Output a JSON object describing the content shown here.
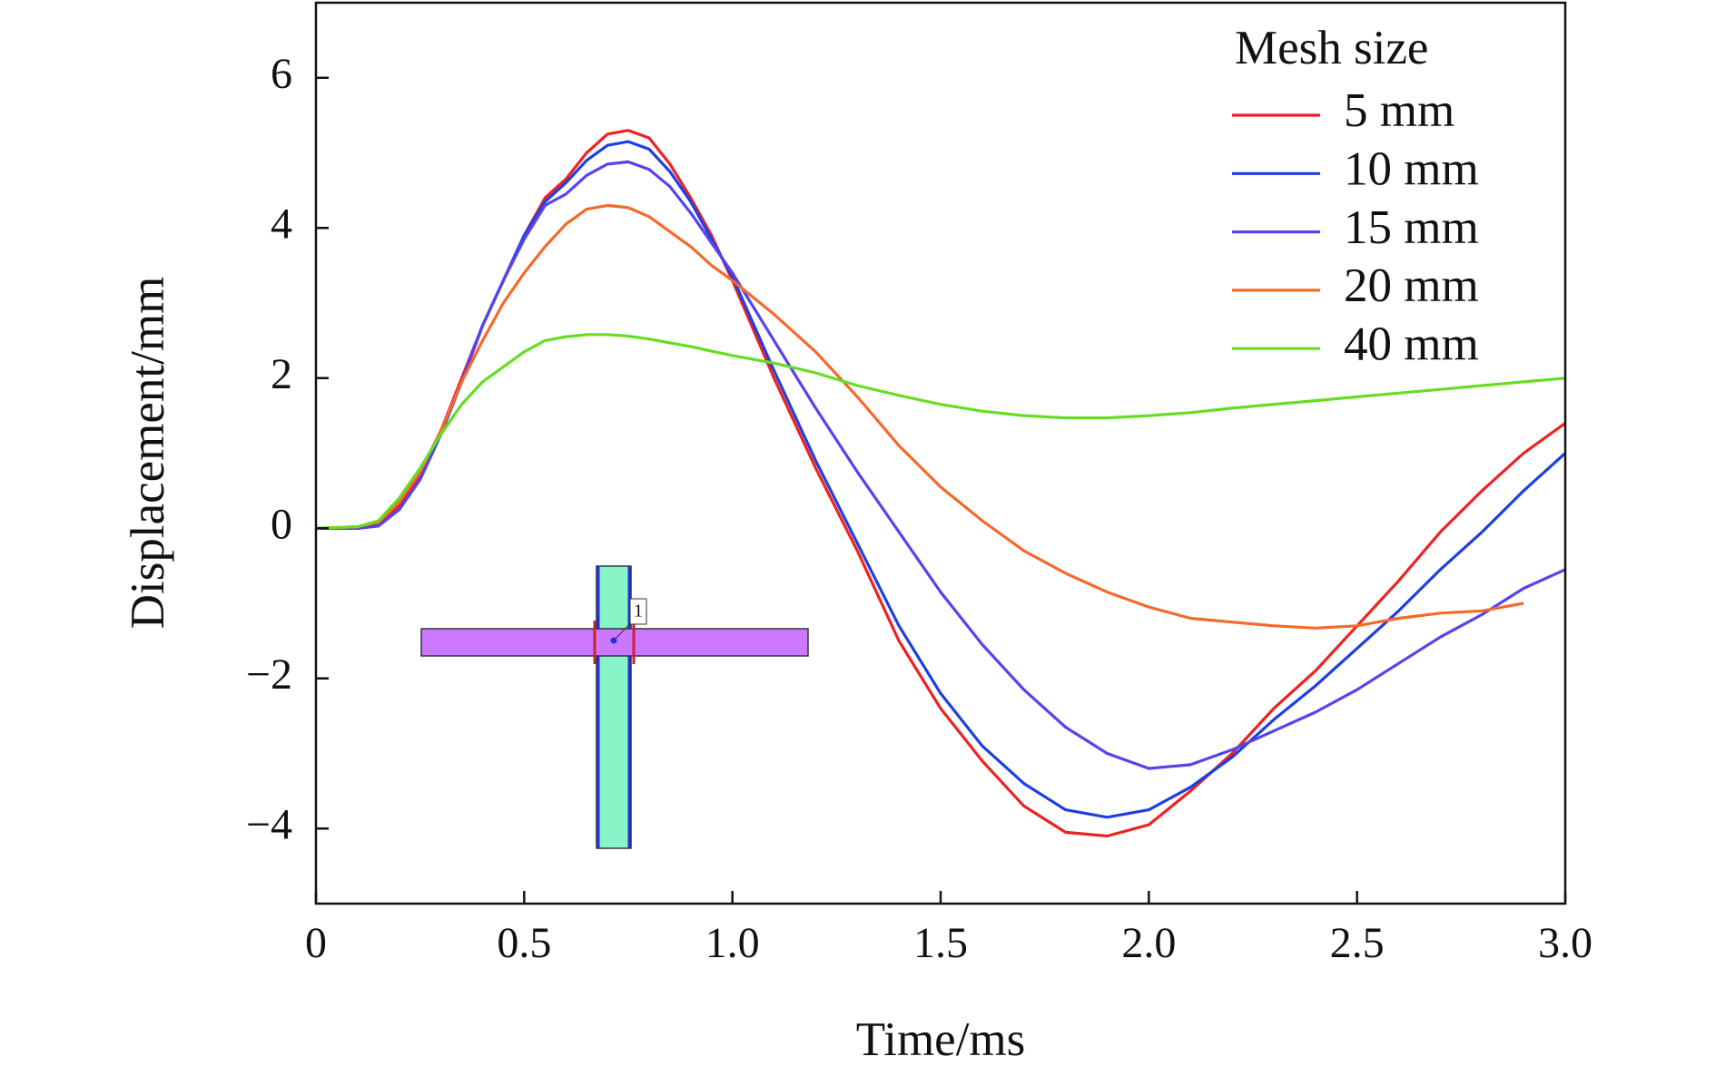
{
  "chart_data": {
    "type": "line",
    "x_label": "Time/ms",
    "y_label": "Displacement/mm",
    "legend_title": "Mesh size",
    "legend": "upper right",
    "annotations": [
      "1"
    ],
    "xlim": [
      0,
      3
    ],
    "ylim": [
      -5,
      7
    ],
    "xticks": [
      0,
      0.5,
      {
        "value": 1,
        "label": "1.0"
      },
      1.5,
      {
        "value": 2,
        "label": "2.0"
      },
      2.5,
      {
        "value": 3,
        "label": "3.0"
      }
    ],
    "yticks": [
      {
        "value": -4,
        "label": "−4"
      },
      {
        "value": -2,
        "label": "−2"
      },
      0,
      2,
      4,
      6
    ],
    "x": [
      0,
      0.1,
      0.15,
      0.2,
      0.25,
      0.3,
      0.35,
      0.4,
      0.45,
      0.5,
      0.55,
      0.6,
      0.65,
      0.7,
      0.75,
      0.8,
      0.85,
      0.9,
      0.95,
      1.0,
      1.1,
      1.2,
      1.3,
      1.4,
      1.5,
      1.6,
      1.7,
      1.8,
      1.9,
      2.0,
      2.1,
      2.2,
      2.3,
      2.4,
      2.5,
      2.6,
      2.7,
      2.8,
      2.9,
      3.0
    ],
    "series": [
      {
        "name": "5 mm",
        "color": "#ee2222",
        "values": [
          0,
          0,
          0.05,
          0.3,
          0.7,
          1.3,
          2.0,
          2.7,
          3.3,
          3.9,
          4.4,
          4.65,
          5.0,
          5.25,
          5.3,
          5.2,
          4.85,
          4.4,
          3.9,
          3.3,
          2.0,
          0.8,
          -0.3,
          -1.5,
          -2.4,
          -3.1,
          -3.7,
          -4.05,
          -4.1,
          -3.95,
          -3.5,
          -3.0,
          -2.4,
          -1.9,
          -1.3,
          -0.7,
          -0.05,
          0.5,
          1.0,
          1.4
        ]
      },
      {
        "name": "10 mm",
        "color": "#1f3fe0",
        "values": [
          0,
          0,
          0.03,
          0.25,
          0.65,
          1.25,
          1.95,
          2.7,
          3.3,
          3.9,
          4.35,
          4.6,
          4.9,
          5.1,
          5.15,
          5.05,
          4.75,
          4.35,
          3.85,
          3.35,
          2.1,
          0.9,
          -0.2,
          -1.3,
          -2.2,
          -2.9,
          -3.4,
          -3.75,
          -3.85,
          -3.75,
          -3.45,
          -3.05,
          -2.55,
          -2.1,
          -1.6,
          -1.1,
          -0.55,
          -0.05,
          0.5,
          1.0
        ]
      },
      {
        "name": "15 mm",
        "color": "#5544ee",
        "values": [
          0,
          0,
          0.03,
          0.25,
          0.65,
          1.25,
          1.95,
          2.7,
          3.3,
          3.85,
          4.3,
          4.45,
          4.7,
          4.85,
          4.88,
          4.78,
          4.55,
          4.2,
          3.8,
          3.4,
          2.5,
          1.6,
          0.75,
          -0.05,
          -0.85,
          -1.55,
          -2.15,
          -2.65,
          -3.0,
          -3.2,
          -3.15,
          -2.95,
          -2.7,
          -2.45,
          -2.15,
          -1.8,
          -1.45,
          -1.15,
          -0.8,
          -0.55
        ]
      },
      {
        "name": "20 mm",
        "color": "#f5692a",
        "values": [
          0,
          0.02,
          0.08,
          0.35,
          0.75,
          1.3,
          1.95,
          2.5,
          3.0,
          3.4,
          3.75,
          4.05,
          4.25,
          4.3,
          4.27,
          4.15,
          3.95,
          3.75,
          3.5,
          3.3,
          2.85,
          2.35,
          1.75,
          1.1,
          0.55,
          0.1,
          -0.3,
          -0.6,
          -0.85,
          -1.05,
          -1.2,
          -1.25,
          -1.3,
          -1.33,
          -1.3,
          -1.2,
          -1.13,
          -1.1,
          -1.0,
          null
        ]
      },
      {
        "name": "40 mm",
        "color": "#66dd22",
        "values": [
          0,
          0.02,
          0.1,
          0.4,
          0.8,
          1.25,
          1.65,
          1.95,
          2.15,
          2.35,
          2.5,
          2.55,
          2.58,
          2.58,
          2.56,
          2.52,
          2.47,
          2.42,
          2.36,
          2.3,
          2.2,
          2.07,
          1.9,
          1.77,
          1.65,
          1.56,
          1.5,
          1.47,
          1.47,
          1.5,
          1.54,
          1.6,
          1.65,
          1.7,
          1.75,
          1.8,
          1.85,
          1.9,
          1.95,
          2.0
        ]
      }
    ]
  }
}
